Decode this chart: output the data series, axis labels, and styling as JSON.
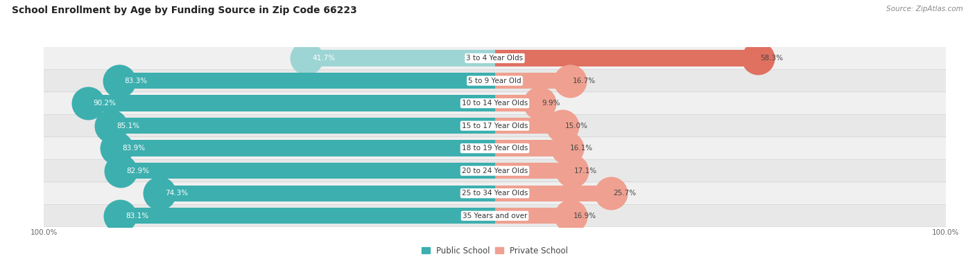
{
  "title": "School Enrollment by Age by Funding Source in Zip Code 66223",
  "source": "Source: ZipAtlas.com",
  "categories": [
    "3 to 4 Year Olds",
    "5 to 9 Year Old",
    "10 to 14 Year Olds",
    "15 to 17 Year Olds",
    "18 to 19 Year Olds",
    "20 to 24 Year Olds",
    "25 to 34 Year Olds",
    "35 Years and over"
  ],
  "public_values": [
    41.7,
    83.3,
    90.2,
    85.1,
    83.9,
    82.9,
    74.3,
    83.1
  ],
  "private_values": [
    58.3,
    16.7,
    9.9,
    15.0,
    16.1,
    17.1,
    25.7,
    16.9
  ],
  "public_colors": [
    "#9DD5D4",
    "#3DAFAF",
    "#3DAFAF",
    "#3DAFAF",
    "#3DAFAF",
    "#3DAFAF",
    "#3DAFAF",
    "#3DAFAF"
  ],
  "private_colors": [
    "#E07060",
    "#EFA090",
    "#EFA090",
    "#EFA090",
    "#EFA090",
    "#EFA090",
    "#EFA090",
    "#EFA090"
  ],
  "row_bg_colors": [
    "#F0F0F0",
    "#E8E8E8",
    "#F0F0F0",
    "#E8E8E8",
    "#F0F0F0",
    "#E8E8E8",
    "#F0F0F0",
    "#E8E8E8"
  ],
  "title_fontsize": 10,
  "bar_label_fontsize": 7.5,
  "cat_label_fontsize": 7.5,
  "legend_fontsize": 8.5,
  "axis_fontsize": 7.5
}
